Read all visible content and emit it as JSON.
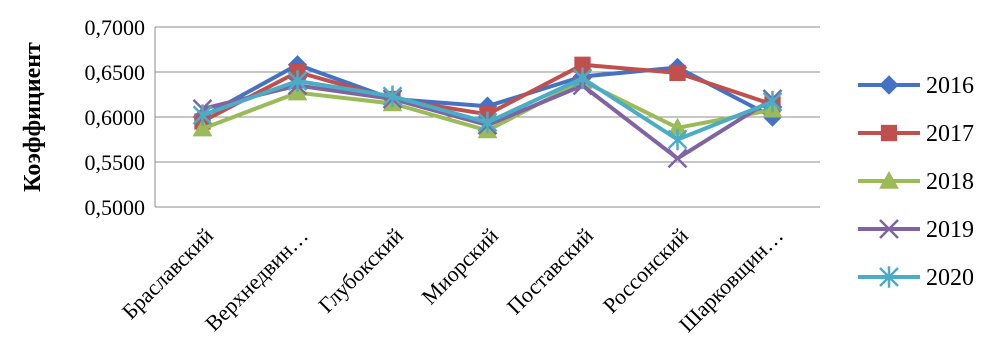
{
  "chart_data": {
    "type": "line",
    "ylabel": "Коэффициент",
    "ylim": [
      0.5,
      0.7
    ],
    "yticks": [
      "0,5000",
      "0,5500",
      "0,6000",
      "0,6500",
      "0,7000"
    ],
    "categories": [
      "Браславский",
      "Верхнедвин…",
      "Глубокский",
      "Миорский",
      "Поставский",
      "Россонский",
      "Шарковщин…"
    ],
    "grid": true,
    "legend_position": "right",
    "series": [
      {
        "name": "2016",
        "color": "#4472C4",
        "marker": "diamond",
        "values": [
          0.6,
          0.658,
          0.62,
          0.612,
          0.645,
          0.655,
          0.6
        ]
      },
      {
        "name": "2017",
        "color": "#C0504D",
        "marker": "square",
        "values": [
          0.595,
          0.65,
          0.62,
          0.603,
          0.658,
          0.649,
          0.614
        ]
      },
      {
        "name": "2018",
        "color": "#9BBB59",
        "marker": "triangle",
        "values": [
          0.587,
          0.627,
          0.615,
          0.585,
          0.64,
          0.588,
          0.608
        ]
      },
      {
        "name": "2019",
        "color": "#8064A2",
        "marker": "x",
        "values": [
          0.609,
          0.635,
          0.62,
          0.591,
          0.635,
          0.554,
          0.62
        ]
      },
      {
        "name": "2020",
        "color": "#4BACC6",
        "marker": "star",
        "values": [
          0.602,
          0.64,
          0.623,
          0.594,
          0.643,
          0.575,
          0.617
        ]
      }
    ]
  }
}
